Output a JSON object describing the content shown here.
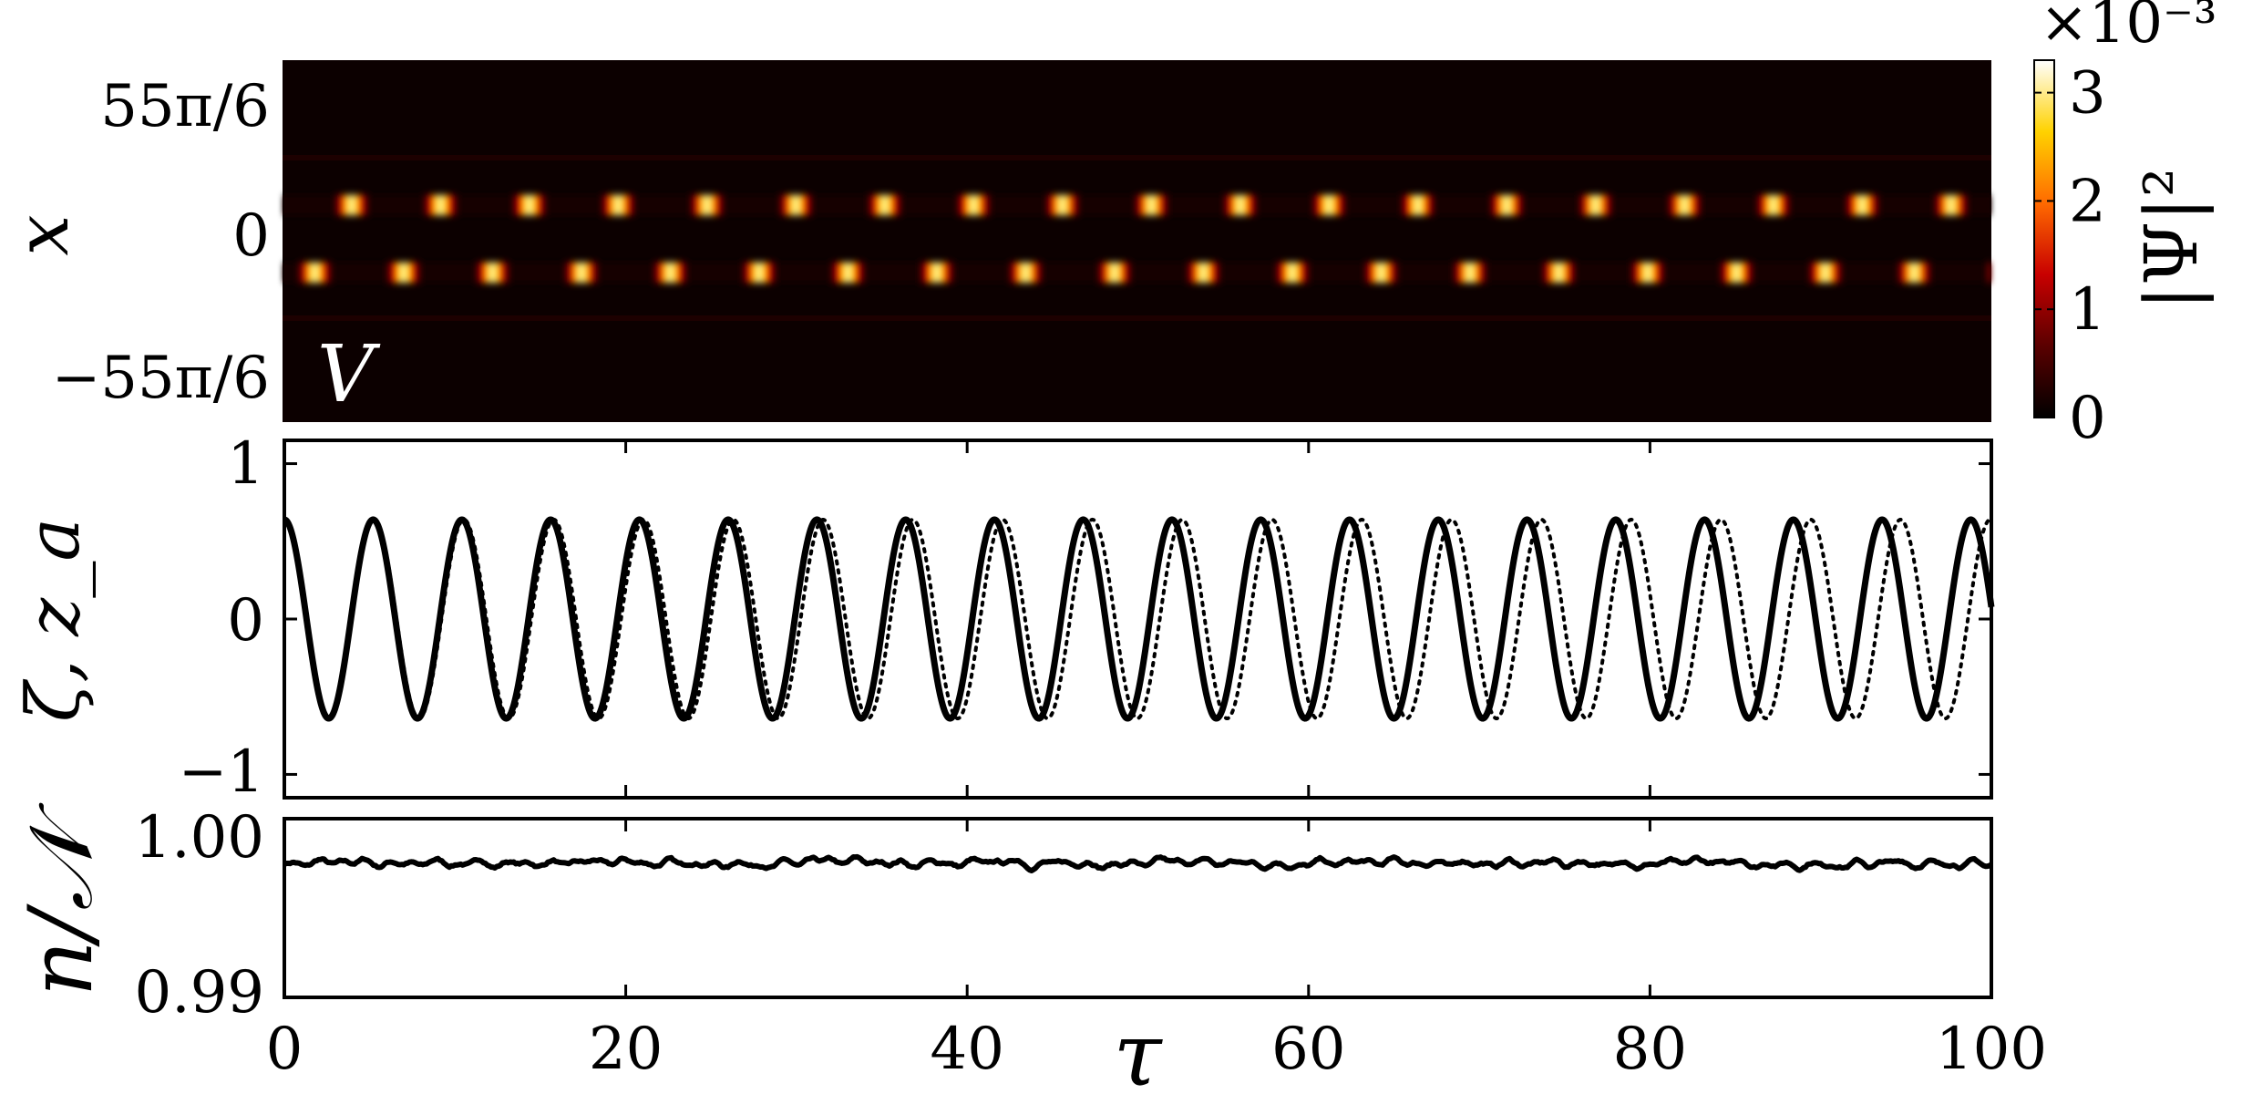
{
  "chart_data": [
    {
      "type": "heatmap",
      "panel": "density",
      "ylabel": "x",
      "annotation": "V",
      "xlim": [
        0,
        100
      ],
      "yticks": [
        "55π/6",
        "0",
        "−55π/6"
      ],
      "colormap": "hot",
      "colors": [
        "#000000",
        "#5a0000",
        "#c80000",
        "#ff6a00",
        "#ffd200",
        "#ffffff"
      ],
      "colorbar": {
        "label": "|Ψ|²",
        "multiplier": "×10⁻³",
        "ticks": [
          "0",
          "1",
          "2",
          "3"
        ],
        "range": [
          0,
          3.3
        ]
      },
      "bands": [
        {
          "x_rel": 0.2,
          "period": 5.2,
          "phase": 1.4,
          "peak": 3.0
        },
        {
          "x_rel": -0.2,
          "period": 5.2,
          "phase": 4.0,
          "peak": 3.0
        }
      ]
    },
    {
      "type": "line",
      "panel": "oscillation",
      "ylabel": "ζ, z_a",
      "xlim": [
        0,
        100
      ],
      "ylim": [
        -1.15,
        1.15
      ],
      "yticks": [
        "−1",
        "0",
        "1"
      ],
      "xticks": [
        "0",
        "20",
        "40",
        "60",
        "80",
        "100"
      ],
      "series": [
        {
          "id": "zeta",
          "style": "solid",
          "amplitude": 0.64,
          "period": 5.2,
          "x_start": 0,
          "x_end": 100
        },
        {
          "id": "z_a",
          "style": "dotted",
          "amplitude": 0.64,
          "period": 5.26,
          "x_start": 0,
          "x_end": 100
        }
      ]
    },
    {
      "type": "line",
      "panel": "norm",
      "ylabel": "n/𝒩",
      "xlabel": "τ",
      "xlim": [
        0,
        100
      ],
      "ylim": [
        0.99,
        1.0012
      ],
      "yticks": [
        "1.00",
        "0.99"
      ],
      "xticks": [
        "0",
        "20",
        "40",
        "60",
        "80",
        "100"
      ],
      "series": [
        {
          "id": "norm",
          "style": "solid",
          "mean": 0.9984,
          "fluctuation": 0.0004,
          "x_start": 0,
          "x_end": 100
        }
      ]
    }
  ]
}
